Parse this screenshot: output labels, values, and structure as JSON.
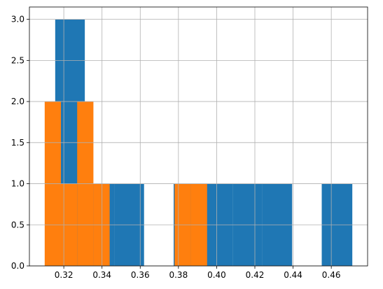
{
  "chart_data": {
    "type": "bar",
    "title": "",
    "xlabel": "",
    "ylabel": "",
    "xlim": [
      0.302,
      0.479
    ],
    "ylim": [
      0,
      3.15
    ],
    "grid": true,
    "legend": "none",
    "x_ticks": [
      {
        "value": 0.32,
        "label": "0.32"
      },
      {
        "value": 0.34,
        "label": "0.34"
      },
      {
        "value": 0.36,
        "label": "0.36"
      },
      {
        "value": 0.38,
        "label": "0.38"
      },
      {
        "value": 0.4,
        "label": "0.40"
      },
      {
        "value": 0.42,
        "label": "0.42"
      },
      {
        "value": 0.44,
        "label": "0.44"
      },
      {
        "value": 0.46,
        "label": "0.46"
      }
    ],
    "y_ticks": [
      {
        "value": 0.0,
        "label": "0.0"
      },
      {
        "value": 0.5,
        "label": "0.5"
      },
      {
        "value": 1.0,
        "label": "1.0"
      },
      {
        "value": 1.5,
        "label": "1.5"
      },
      {
        "value": 2.0,
        "label": "2.0"
      },
      {
        "value": 2.5,
        "label": "2.5"
      },
      {
        "value": 3.0,
        "label": "3.0"
      }
    ],
    "series": [
      {
        "color": "#1f77b4",
        "bins": [
          {
            "x0": 0.3155,
            "x1": 0.331,
            "count": 3
          },
          {
            "x0": 0.331,
            "x1": 0.3465,
            "count": 1
          },
          {
            "x0": 0.3465,
            "x1": 0.362,
            "count": 1
          },
          {
            "x0": 0.362,
            "x1": 0.3775,
            "count": 0
          },
          {
            "x0": 0.3775,
            "x1": 0.393,
            "count": 1
          },
          {
            "x0": 0.393,
            "x1": 0.4085,
            "count": 1
          },
          {
            "x0": 0.4085,
            "x1": 0.424,
            "count": 1
          },
          {
            "x0": 0.424,
            "x1": 0.4395,
            "count": 1
          },
          {
            "x0": 0.4395,
            "x1": 0.455,
            "count": 0
          },
          {
            "x0": 0.455,
            "x1": 0.471,
            "count": 1
          }
        ]
      },
      {
        "color": "#ff7f0e",
        "bins": [
          {
            "x0": 0.31,
            "x1": 0.3185,
            "count": 2
          },
          {
            "x0": 0.3185,
            "x1": 0.327,
            "count": 1
          },
          {
            "x0": 0.327,
            "x1": 0.3355,
            "count": 2
          },
          {
            "x0": 0.3355,
            "x1": 0.344,
            "count": 1
          },
          {
            "x0": 0.344,
            "x1": 0.3525,
            "count": 0
          },
          {
            "x0": 0.3525,
            "x1": 0.361,
            "count": 0
          },
          {
            "x0": 0.361,
            "x1": 0.3695,
            "count": 0
          },
          {
            "x0": 0.3695,
            "x1": 0.378,
            "count": 0
          },
          {
            "x0": 0.378,
            "x1": 0.3865,
            "count": 1
          },
          {
            "x0": 0.3865,
            "x1": 0.395,
            "count": 1
          }
        ]
      }
    ]
  }
}
